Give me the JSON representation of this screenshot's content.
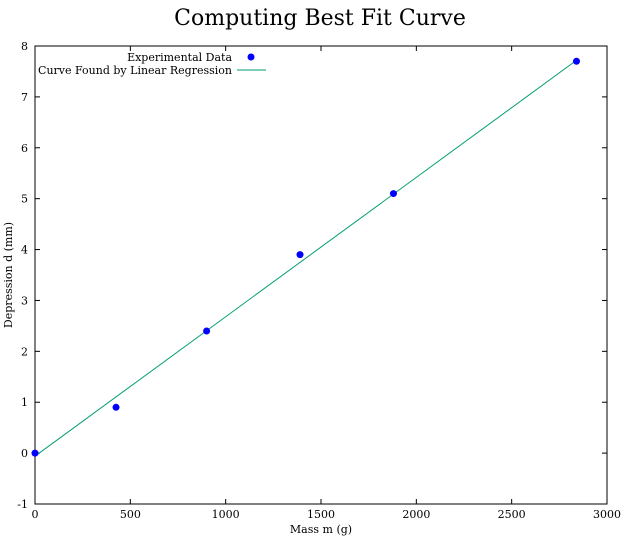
{
  "chart_data": {
    "type": "scatter",
    "title": "Computing Best Fit Curve",
    "xlabel": "Mass m (g)",
    "ylabel": "Depression d (mm)",
    "xlim": [
      0,
      3000
    ],
    "ylim": [
      -1,
      8
    ],
    "xticks": [
      0,
      500,
      1000,
      1500,
      2000,
      2500,
      3000
    ],
    "yticks": [
      -1,
      0,
      1,
      2,
      3,
      4,
      5,
      6,
      7,
      8
    ],
    "grid": false,
    "legend_position": "top-left",
    "series": [
      {
        "name": "Experimental Data",
        "kind": "points",
        "color": "#0000ff",
        "x": [
          0,
          425,
          900,
          1390,
          1880,
          2840
        ],
        "y": [
          0.0,
          0.9,
          2.4,
          3.9,
          5.1,
          7.7
        ]
      },
      {
        "name": "Curve Found by Linear Regression",
        "kind": "line",
        "color": "#009e73",
        "x": [
          0,
          2840
        ],
        "y": [
          -0.06,
          7.72
        ]
      }
    ]
  }
}
